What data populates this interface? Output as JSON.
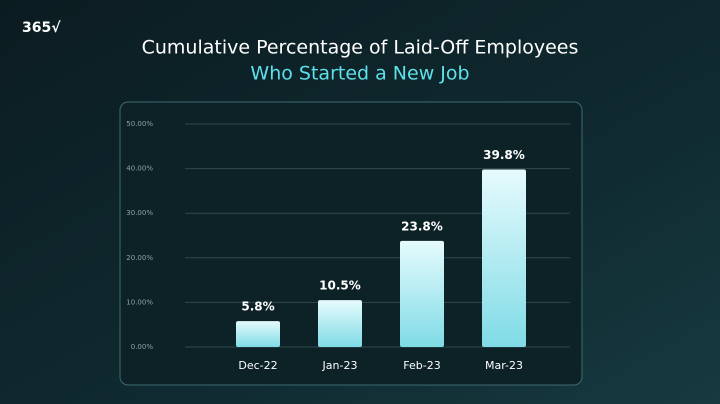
{
  "logo": "365√",
  "chart_data": {
    "type": "bar",
    "title": "Cumulative Percentage of Laid-Off Employees",
    "subtitle": "Who Started a New Job",
    "categories": [
      "Dec-22",
      "Jan-23",
      "Feb-23",
      "Mar-23"
    ],
    "values": [
      5.8,
      10.5,
      23.8,
      39.8
    ],
    "value_labels": [
      "5.8%",
      "10.5%",
      "23.8%",
      "39.8%"
    ],
    "color": "#8fe3ee",
    "ylim": [
      0,
      50
    ],
    "yticks": [
      {
        "value": 0,
        "label": "0.00%"
      },
      {
        "value": 10,
        "label": "10.00%"
      },
      {
        "value": 20,
        "label": "20.00%"
      },
      {
        "value": 30,
        "label": "30.00%"
      },
      {
        "value": 40,
        "label": "40.00%"
      },
      {
        "value": 50,
        "label": "50.00%"
      }
    ],
    "grid": true
  }
}
